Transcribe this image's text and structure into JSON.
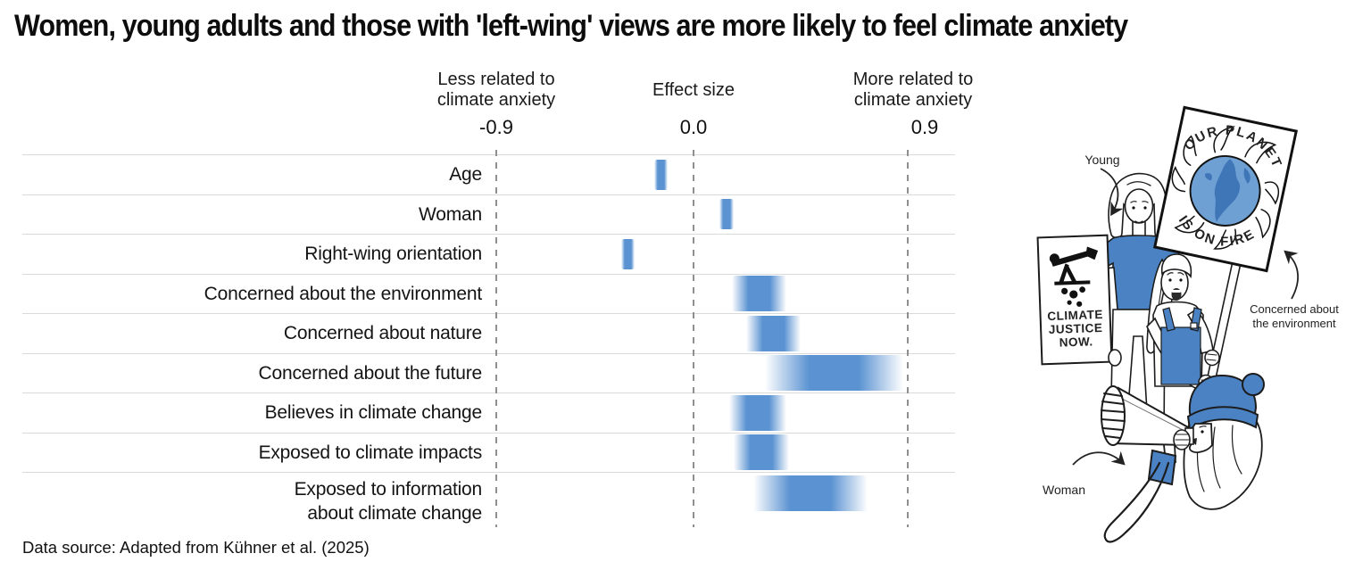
{
  "title": "Women, young adults and those with 'left-wing' views are more likely to feel climate anxiety",
  "footer": "Data source: Adapted from Kühner et al. (2025)",
  "axis_headers": {
    "left_line1": "Less related to",
    "left_line2": "climate anxiety",
    "center": "Effect size",
    "right_line1": "More related to",
    "right_line2": "climate anxiety"
  },
  "chart_data": {
    "type": "bar",
    "subtype": "horizontal gradient interval strips (effect sizes with uncertainty)",
    "title": "Women, young adults and those with 'left-wing' views are more likely to feel climate anxiety",
    "xlabel": "Effect size",
    "xlim": [
      -0.9,
      0.9
    ],
    "ticks": [
      -0.9,
      0.0,
      0.9
    ],
    "tick_labels": [
      "-0.9",
      "0.0",
      "0.9"
    ],
    "grid": "dashed vertical at -0.9, 0.0, 0.9; light horizontal row separators",
    "bar_color": "#5b93d2",
    "categories": [
      "Age",
      "Woman",
      "Right-wing orientation",
      "Concerned about the environment",
      "Concerned about nature",
      "Concerned about the future",
      "Believes in climate change",
      "Exposed to climate impacts",
      "Exposed to information\nabout climate change"
    ],
    "intervals": [
      [
        -0.18,
        -0.12
      ],
      [
        0.11,
        0.17
      ],
      [
        -0.33,
        -0.27
      ],
      [
        0.16,
        0.39
      ],
      [
        0.22,
        0.45
      ],
      [
        0.3,
        0.88
      ],
      [
        0.15,
        0.39
      ],
      [
        0.17,
        0.4
      ],
      [
        0.25,
        0.73
      ]
    ],
    "interval_centers": [
      -0.15,
      0.14,
      -0.3,
      0.27,
      0.33,
      0.59,
      0.27,
      0.28,
      0.49
    ]
  },
  "illustration": {
    "young_label": "Young",
    "woman_label": "Woman",
    "env_label_line1": "Concerned about",
    "env_label_line2": "the environment",
    "sign_text_top": "OUR PLANET",
    "sign_text_bottom": "IS ON FIRE",
    "placard_line1": "CLIMATE",
    "placard_line2": "JUSTICE",
    "placard_line3": "NOW."
  }
}
